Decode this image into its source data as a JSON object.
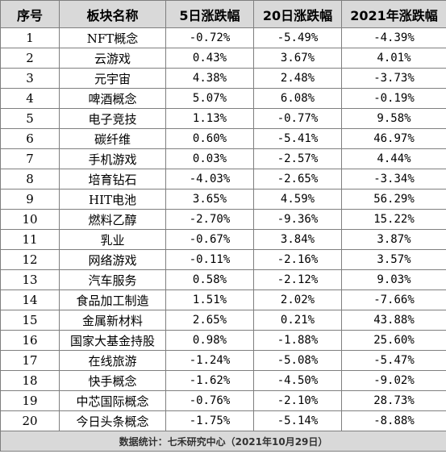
{
  "table": {
    "headers": [
      "序号",
      "板块名称",
      "5日涨跌幅",
      "20日涨跌幅",
      "2021年涨跌幅"
    ],
    "rows": [
      [
        "1",
        "NFT概念",
        "-0.72%",
        "-5.49%",
        "-4.39%"
      ],
      [
        "2",
        "云游戏",
        "0.43%",
        "3.67%",
        "4.01%"
      ],
      [
        "3",
        "元宇宙",
        "4.38%",
        "2.48%",
        "-3.73%"
      ],
      [
        "4",
        "啤酒概念",
        "5.07%",
        "6.08%",
        "-0.19%"
      ],
      [
        "5",
        "电子竞技",
        "1.13%",
        "-0.77%",
        "9.58%"
      ],
      [
        "6",
        "碳纤维",
        "0.60%",
        "-5.41%",
        "46.97%"
      ],
      [
        "7",
        "手机游戏",
        "0.03%",
        "-2.57%",
        "4.44%"
      ],
      [
        "8",
        "培育钻石",
        "-4.03%",
        "-2.65%",
        "-3.34%"
      ],
      [
        "9",
        "HIT电池",
        "3.65%",
        "4.59%",
        "56.29%"
      ],
      [
        "10",
        "燃料乙醇",
        "-2.70%",
        "-9.36%",
        "15.22%"
      ],
      [
        "11",
        "乳业",
        "-0.67%",
        "3.84%",
        "3.87%"
      ],
      [
        "12",
        "网络游戏",
        "-0.11%",
        "-2.16%",
        "3.57%"
      ],
      [
        "13",
        "汽车服务",
        "0.58%",
        "-2.12%",
        "9.03%"
      ],
      [
        "14",
        "食品加工制造",
        "1.51%",
        "2.02%",
        "-7.66%"
      ],
      [
        "15",
        "金属新材料",
        "2.65%",
        "0.21%",
        "43.88%"
      ],
      [
        "16",
        "国家大基金持股",
        "0.98%",
        "-1.88%",
        "25.60%"
      ],
      [
        "17",
        "在线旅游",
        "-1.24%",
        "-5.08%",
        "-5.47%"
      ],
      [
        "18",
        "快手概念",
        "-1.62%",
        "-4.50%",
        "-9.02%"
      ],
      [
        "19",
        "中芯国际概念",
        "-0.76%",
        "-2.10%",
        "28.73%"
      ],
      [
        "20",
        "今日头条概念",
        "-1.75%",
        "-5.14%",
        "-8.88%"
      ]
    ],
    "footer": "数据统计：七禾研究中心（2021年10月29日）"
  }
}
